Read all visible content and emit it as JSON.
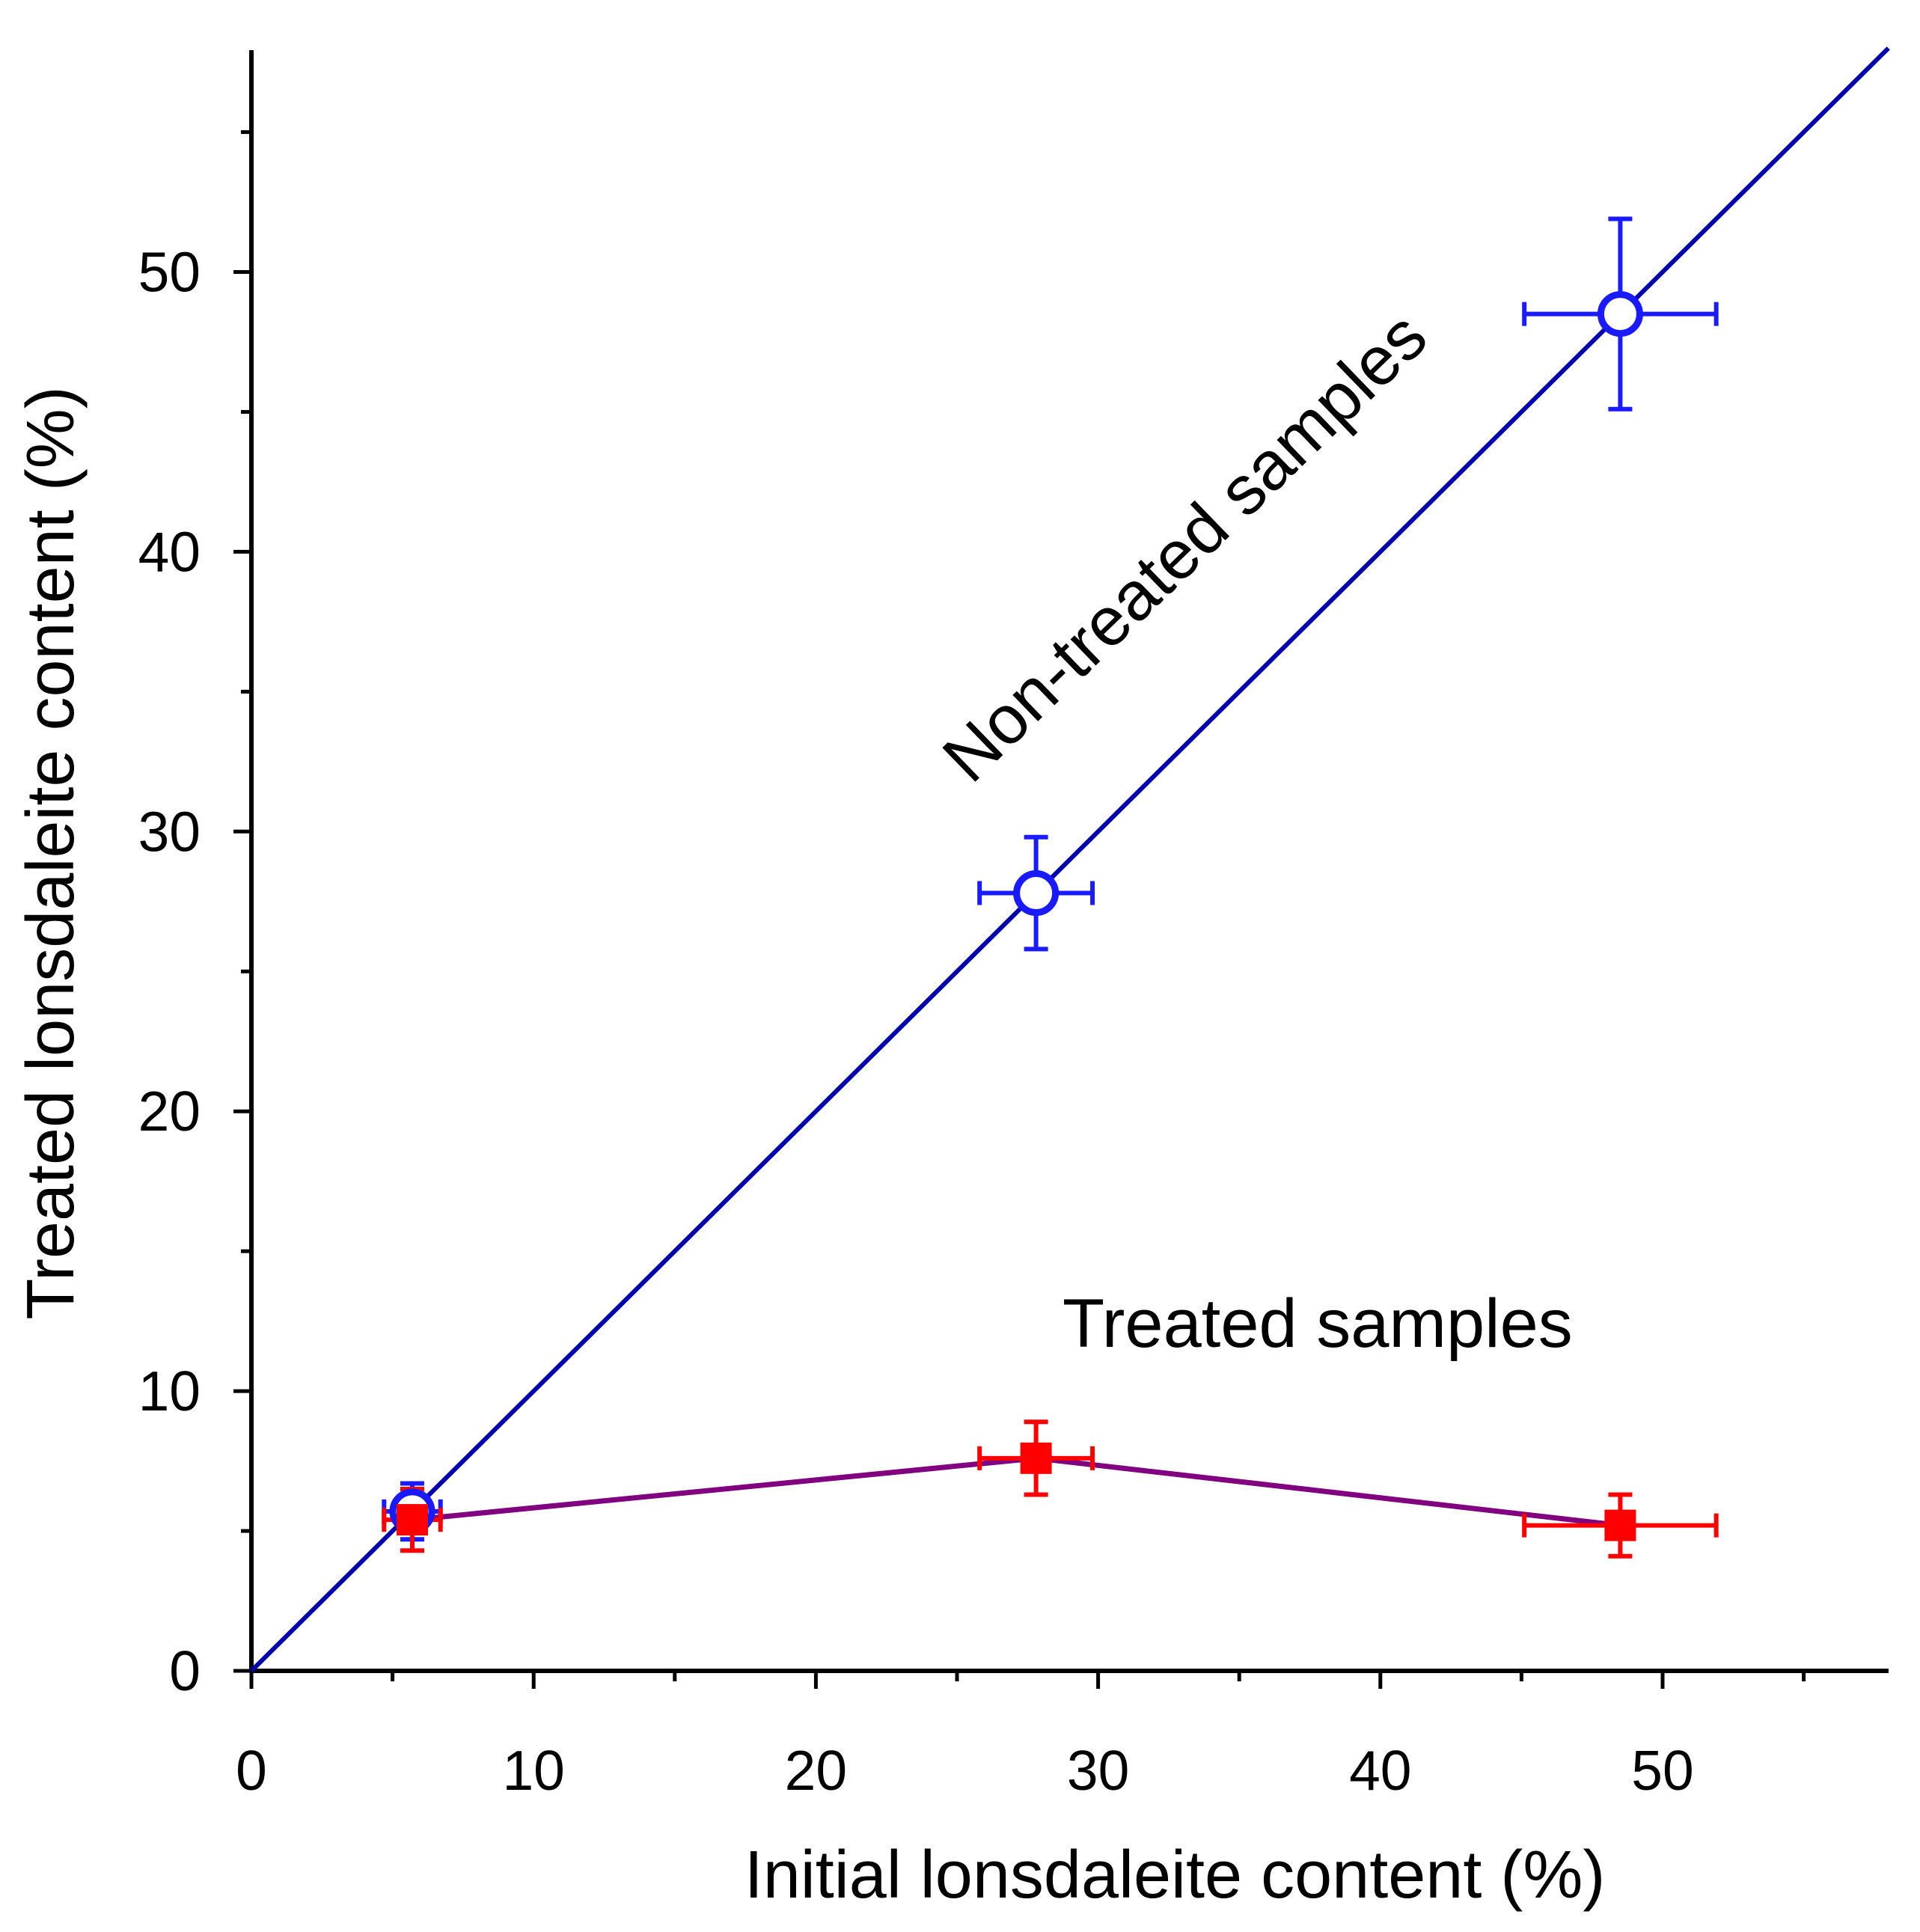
{
  "chart_data": {
    "type": "scatter",
    "xlabel": "Initial lonsdaleite content (%)",
    "ylabel": "Treated lonsdaleite content (%)",
    "xlim": [
      0,
      58
    ],
    "ylim": [
      0,
      58
    ],
    "x_major_ticks": [
      0,
      10,
      20,
      30,
      40,
      50
    ],
    "y_major_ticks": [
      0,
      10,
      20,
      30,
      40,
      50
    ],
    "x_minor_ticks": [
      5,
      15,
      25,
      35,
      45,
      55
    ],
    "y_minor_ticks": [
      5,
      15,
      25,
      35,
      45,
      55
    ],
    "grid": false,
    "series": [
      {
        "name": "Non-treated samples",
        "marker": "open-circle",
        "color": "#1a1aff",
        "line": "diagonal y = x",
        "line_color": "#0000b0",
        "line_from": [
          0,
          0
        ],
        "line_to": [
          58,
          58
        ],
        "points": [
          {
            "x": 5.7,
            "y": 5.7,
            "xerr": 1.0,
            "yerr": 1.0
          },
          {
            "x": 27.8,
            "y": 27.8,
            "xerr": 2.0,
            "yerr": 2.0
          },
          {
            "x": 48.5,
            "y": 48.5,
            "xerr": 3.4,
            "yerr": 3.4
          }
        ]
      },
      {
        "name": "Treated samples",
        "marker": "filled-square",
        "color": "#ff0000",
        "line": "connected",
        "line_color": "#800080",
        "points": [
          {
            "x": 5.7,
            "y": 5.4,
            "xerr": 1.0,
            "yerr": 1.1
          },
          {
            "x": 27.8,
            "y": 7.6,
            "xerr": 2.0,
            "yerr": 1.3
          },
          {
            "x": 48.5,
            "y": 5.2,
            "xerr": 3.4,
            "yerr": 1.1
          }
        ]
      }
    ],
    "annotations": [
      "Non-treated samples",
      "Treated samples"
    ]
  }
}
